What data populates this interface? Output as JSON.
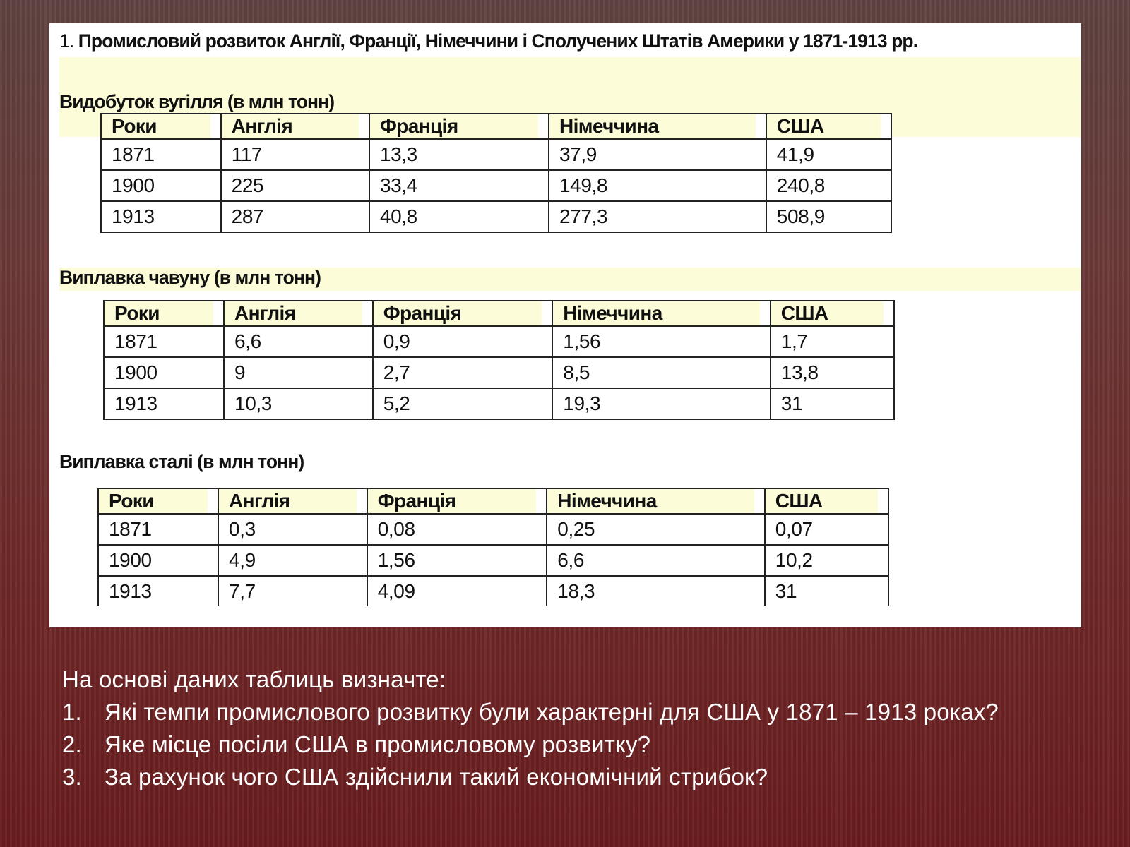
{
  "sheet": {
    "title_num": "1.",
    "title": "Промисловий розвиток Англії, Франції, Німеччини і Сполучених Штатів Америки у 1871-1913 рр."
  },
  "tables": [
    {
      "title": "Видобуток вугілля (в млн тонн)",
      "headers": [
        "Роки",
        "Англія",
        "Франція",
        "Німеччина",
        "США"
      ],
      "rows": [
        [
          "1871",
          "117",
          "13,3",
          "37,9",
          "41,9"
        ],
        [
          "1900",
          "225",
          "33,4",
          "149,8",
          "240,8"
        ],
        [
          "1913",
          "287",
          "40,8",
          "277,3",
          "508,9"
        ]
      ]
    },
    {
      "title": "Виплавка чавуну (в млн тонн)",
      "headers": [
        "Роки",
        "Англія",
        "Франція",
        "Німеччина",
        "США"
      ],
      "rows": [
        [
          "1871",
          "6,6",
          "0,9",
          "1,56",
          "1,7"
        ],
        [
          "1900",
          "9",
          "2,7",
          "8,5",
          "13,8"
        ],
        [
          "1913",
          "10,3",
          "5,2",
          "19,3",
          "31"
        ]
      ]
    },
    {
      "title": "Виплавка сталі (в млн тонн)",
      "headers": [
        "Роки",
        "Англія",
        "Франція",
        "Німеччина",
        "США"
      ],
      "rows": [
        [
          "1871",
          "0,3",
          "0,08",
          "0,25",
          "0,07"
        ],
        [
          "1900",
          "4,9",
          "1,56",
          "6,6",
          "10,2"
        ],
        [
          "1913",
          "7,7",
          "4,09",
          "18,3",
          "31"
        ]
      ]
    }
  ],
  "task": {
    "intro": "На основі даних таблиць визначте:",
    "questions": [
      {
        "num": "1.",
        "text": "Які темпи промислового розвитку були характерні для США у 1871 – 1913 роках?"
      },
      {
        "num": "2.",
        "text": "Яке місце посіли США в промисловому розвитку?"
      },
      {
        "num": "3.",
        "text": "За рахунок чого США здійснили такий економічний стрибок?"
      }
    ]
  }
}
